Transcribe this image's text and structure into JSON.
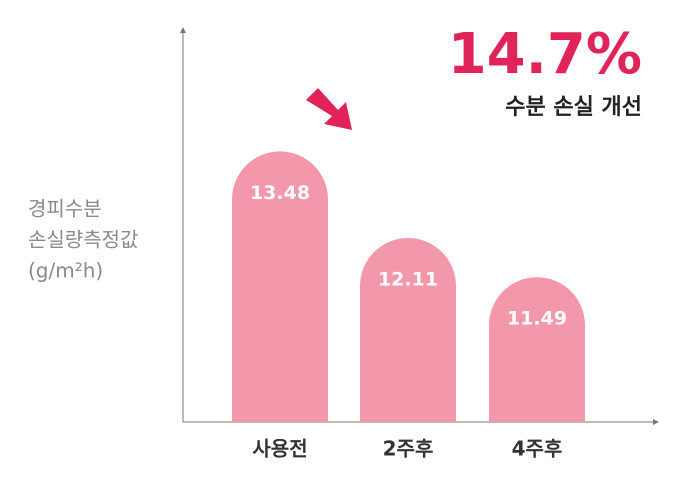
{
  "chart_data": {
    "type": "bar",
    "categories": [
      "사용전",
      "2주후",
      "4주후"
    ],
    "values": [
      13.48,
      12.11,
      11.49
    ],
    "color": "#f397ab",
    "ylabel": [
      "경피수분",
      "손실량측정값",
      "(g/m²h)"
    ],
    "annotation": {
      "value": "14.7%",
      "text": "수분 손실 개선",
      "color": "#e0245a"
    },
    "ylim": [
      9.2,
      15.4
    ]
  }
}
